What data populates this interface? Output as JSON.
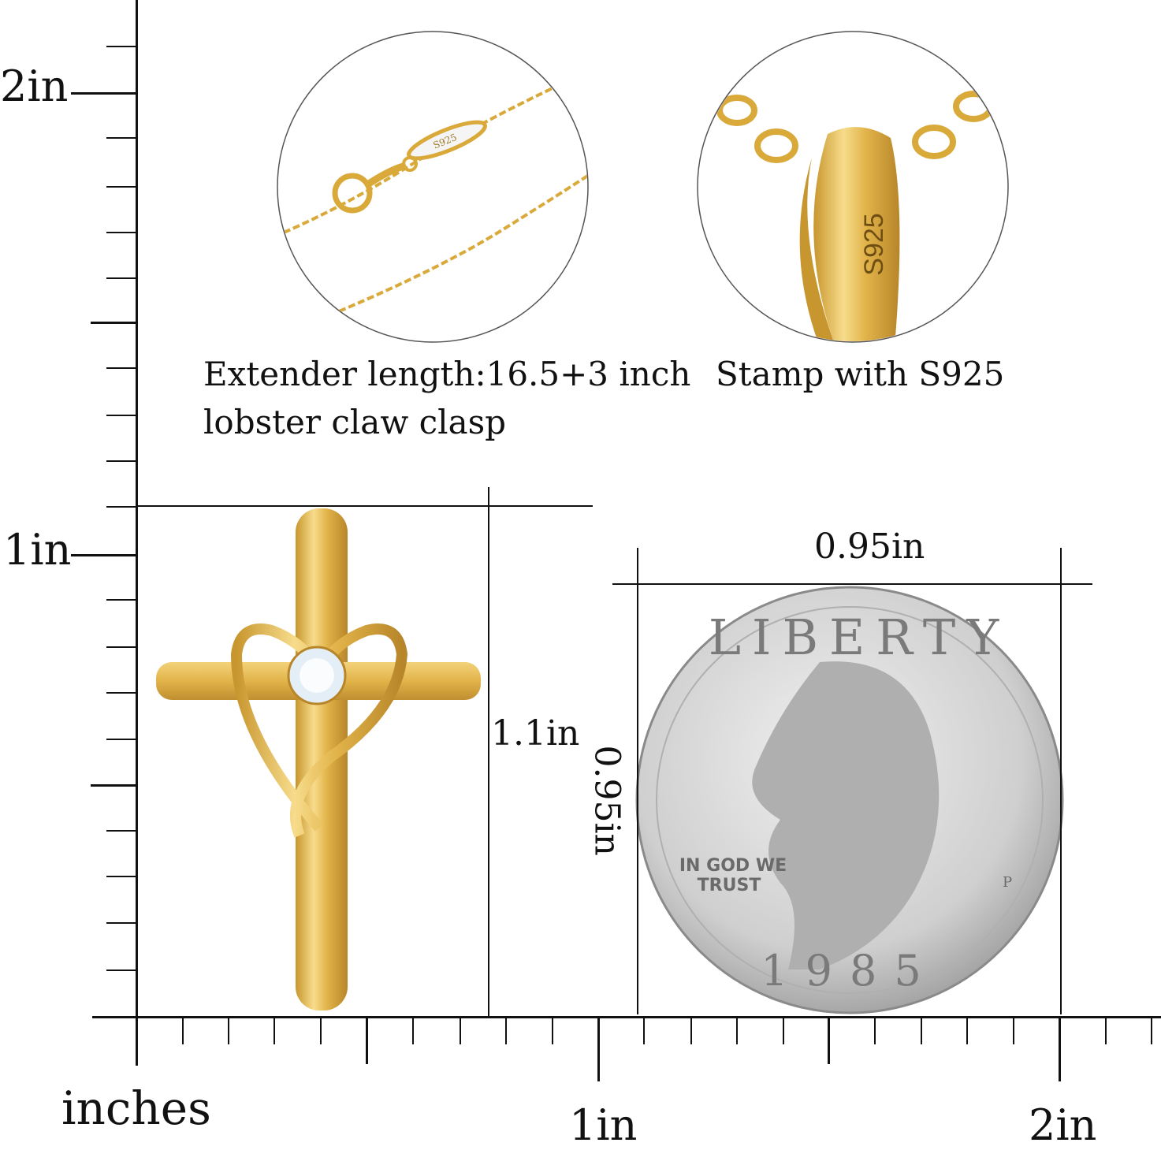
{
  "ruler": {
    "unit_label": "inches",
    "vertical_labels": [
      "2in",
      "1in"
    ],
    "horizontal_labels": [
      "1in",
      "2in"
    ]
  },
  "details": {
    "chain_caption_line1": "Extender length:16.5+3 inch",
    "chain_caption_line2": "lobster claw clasp",
    "bail_caption": "Stamp with S925",
    "clasp_stamp": "S925",
    "bail_stamp": "S925"
  },
  "pendant": {
    "height_label": "1.1in"
  },
  "coin": {
    "width_label": "0.95in",
    "height_label": "0.95in",
    "legend": "LIBERTY",
    "motto_line1": "IN GOD WE",
    "motto_line2": "TRUST",
    "year": "1985",
    "mint_mark": "P"
  },
  "colors": {
    "gold": "#E2B44A",
    "gold_light": "#F7DC8C",
    "gold_dark": "#B8862A",
    "silver": "#C9C9C9",
    "ink": "#111111"
  }
}
